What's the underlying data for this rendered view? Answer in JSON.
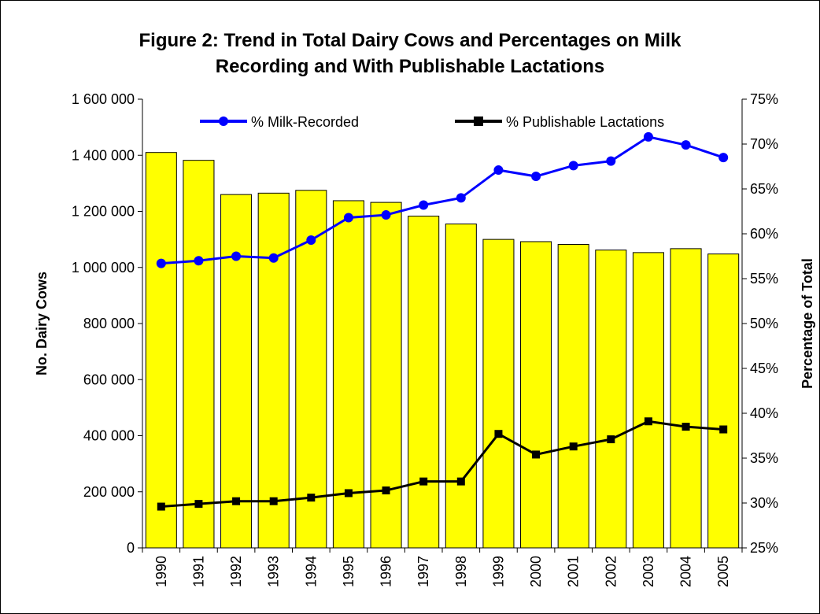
{
  "chart_data": {
    "type": "bar+line",
    "title_line1": "Figure 2: Trend in Total Dairy Cows and Percentages on Milk",
    "title_line2": "Recording and With Publishable Lactations",
    "ylabel": "No. Dairy Cows",
    "y2label": "Percentage of Total",
    "categories": [
      "1990",
      "1991",
      "1992",
      "1993",
      "1994",
      "1995",
      "1996",
      "1997",
      "1998",
      "1999",
      "2000",
      "2001",
      "2002",
      "2003",
      "2004",
      "2005"
    ],
    "ylim": [
      0,
      1600000
    ],
    "y2lim": [
      25,
      75
    ],
    "y_ticks": [
      "0",
      "200 000",
      "400 000",
      "600 000",
      "800 000",
      "1 000 000",
      "1 200 000",
      "1 400 000",
      "1 600 000"
    ],
    "y2_ticks": [
      "25%",
      "30%",
      "35%",
      "40%",
      "45%",
      "50%",
      "55%",
      "60%",
      "65%",
      "70%",
      "75%"
    ],
    "bars": {
      "axis": "left",
      "color": "#ffff00",
      "values": [
        1410000,
        1382000,
        1260000,
        1265000,
        1275000,
        1238000,
        1232000,
        1183000,
        1155000,
        1100000,
        1092000,
        1082000,
        1062000,
        1053000,
        1067000,
        1048000
      ]
    },
    "series": [
      {
        "name": "% Milk-Recorded",
        "axis": "right",
        "color": "#0000ff",
        "marker": "circle",
        "values": [
          56.7,
          57.0,
          57.5,
          57.3,
          59.3,
          61.8,
          62.1,
          63.2,
          64.0,
          67.1,
          66.4,
          67.6,
          68.1,
          70.8,
          69.9,
          68.5
        ]
      },
      {
        "name": "% Publishable Lactations",
        "axis": "right",
        "color": "#000000",
        "marker": "square",
        "values": [
          29.6,
          29.9,
          30.2,
          30.2,
          30.6,
          31.1,
          31.4,
          32.4,
          32.4,
          37.7,
          35.4,
          36.3,
          37.1,
          39.1,
          38.5,
          38.2
        ]
      }
    ],
    "legend_position": "top"
  }
}
